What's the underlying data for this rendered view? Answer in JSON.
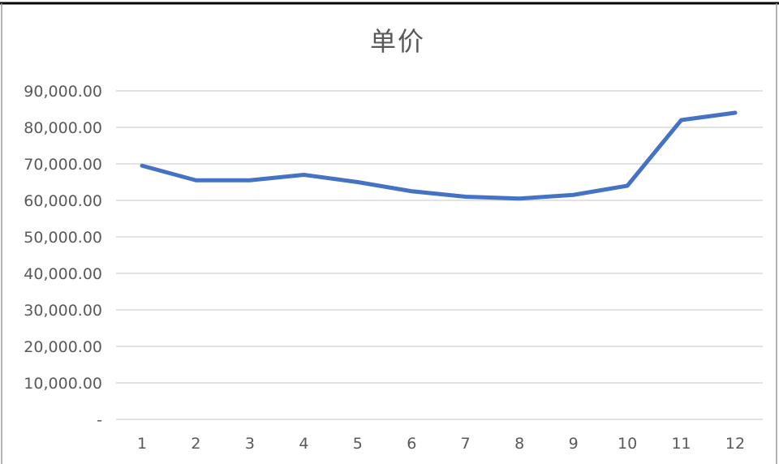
{
  "chart_data": {
    "type": "line",
    "title": "单价",
    "xlabel": "",
    "ylabel": "",
    "categories": [
      "1",
      "2",
      "3",
      "4",
      "5",
      "6",
      "7",
      "8",
      "9",
      "10",
      "11",
      "12"
    ],
    "series": [
      {
        "values": [
          69500,
          65500,
          65500,
          67000,
          65000,
          62500,
          61000,
          60500,
          61500,
          64000,
          82000,
          84000
        ]
      }
    ],
    "y_ticks": [
      "-",
      "10,000.00",
      "20,000.00",
      "30,000.00",
      "40,000.00",
      "50,000.00",
      "60,000.00",
      "70,000.00",
      "80,000.00",
      "90,000.00"
    ],
    "ylim": [
      0,
      90000
    ],
    "grid": true,
    "legend": "none",
    "colors": {
      "line": "#4472C4",
      "grid": "#D9D9D9",
      "frame": "#000000"
    }
  }
}
